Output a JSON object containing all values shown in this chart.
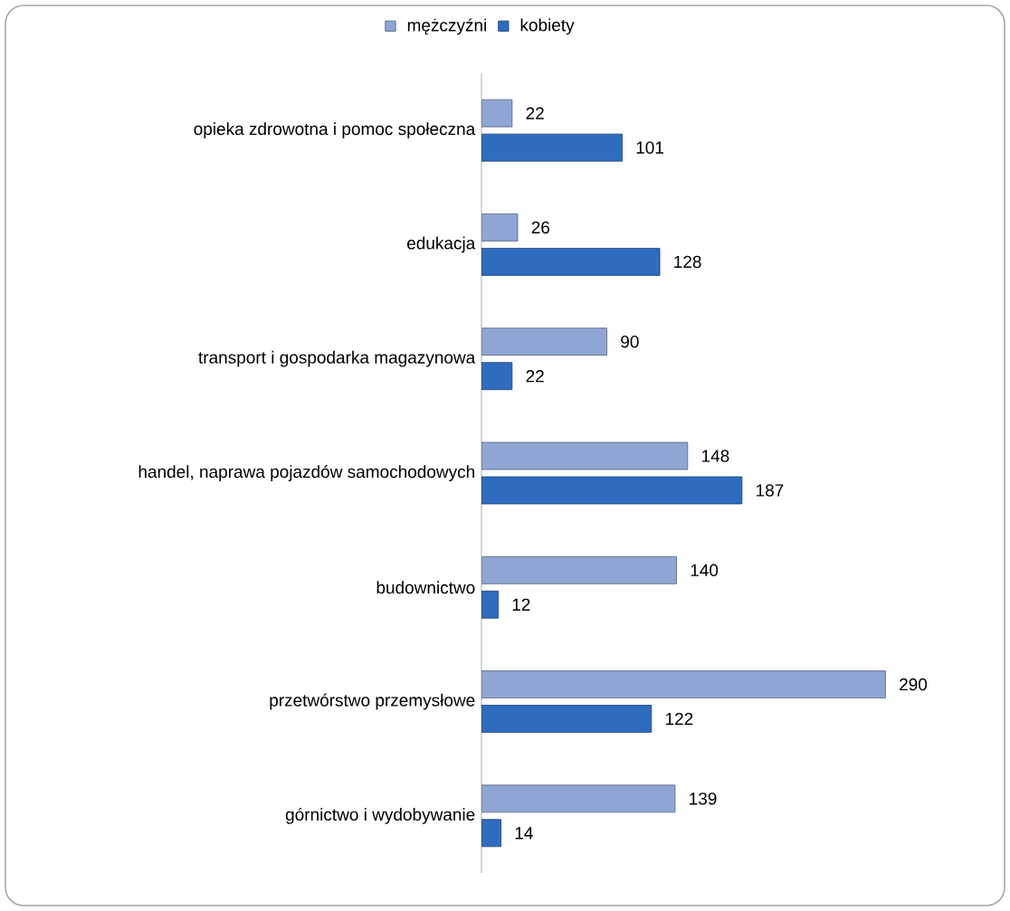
{
  "chart_data": {
    "type": "bar",
    "orientation": "horizontal",
    "data_labels": true,
    "legend": "top",
    "categories": [
      "opieka zdrowotna i pomoc społeczna",
      "edukacja",
      "transport i gospodarka magazynowa",
      "handel, naprawa pojazdów samochodowych",
      "budownictwo",
      "przetwórstwo przemysłowe",
      "górnictwo i wydobywanie"
    ],
    "series": [
      {
        "name": "mężczyźni",
        "color": "#8fa5d3",
        "values": [
          22,
          26,
          90,
          148,
          140,
          290,
          139
        ]
      },
      {
        "name": "kobiety",
        "color": "#2f6cc0",
        "values": [
          101,
          128,
          22,
          187,
          12,
          122,
          14
        ]
      }
    ]
  }
}
